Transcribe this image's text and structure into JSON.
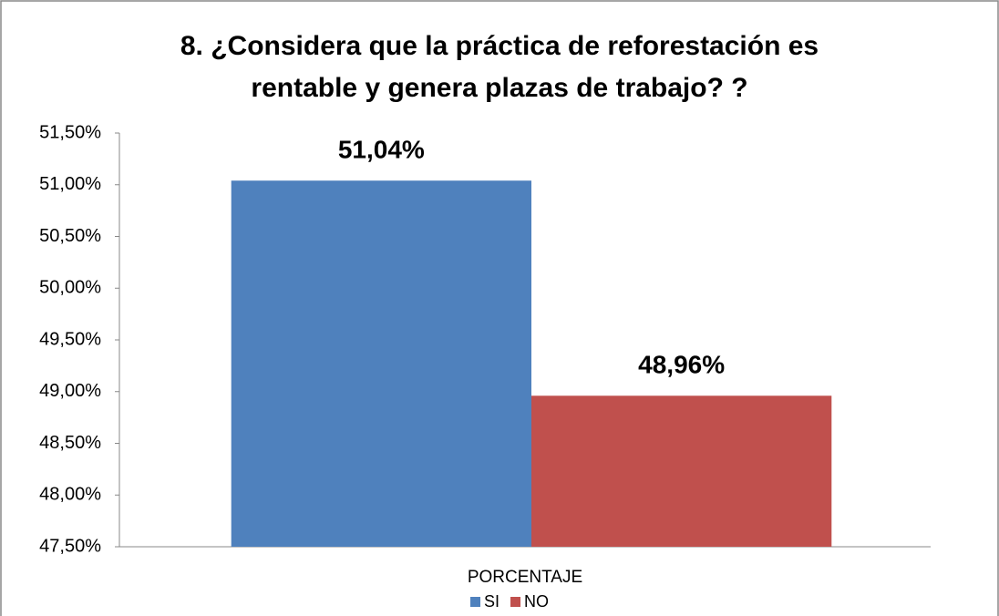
{
  "chart_data": {
    "type": "bar",
    "title": "8.  ¿Considera que la práctica de reforestación es rentable y genera plazas de trabajo? ?",
    "categories": [
      "PORCENTAJE"
    ],
    "series": [
      {
        "name": "SI",
        "color": "#4f81bd",
        "values": [
          51.04
        ],
        "value_labels": [
          "51,04%"
        ]
      },
      {
        "name": "NO",
        "color": "#c0504d",
        "values": [
          48.96
        ],
        "value_labels": [
          "48,96%"
        ]
      }
    ],
    "ylim": [
      47.5,
      51.5
    ],
    "yticks": [
      {
        "value": 47.5,
        "label": "47,50%"
      },
      {
        "value": 48,
        "label": "48,00%"
      },
      {
        "value": 48.5,
        "label": "48,50%"
      },
      {
        "value": 49,
        "label": "49,00%"
      },
      {
        "value": 49.5,
        "label": "49,50%"
      },
      {
        "value": 50,
        "label": "50,00%"
      },
      {
        "value": 50.5,
        "label": "50,50%"
      },
      {
        "value": 51,
        "label": "51,00%"
      },
      {
        "value": 51.5,
        "label": "51,50%"
      }
    ],
    "grid": false,
    "legend": "bottom"
  }
}
